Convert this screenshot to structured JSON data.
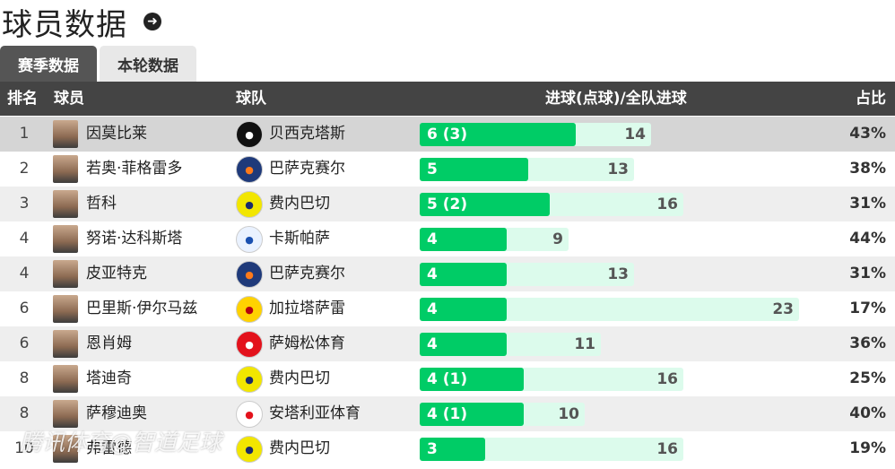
{
  "header": {
    "title": "球员数据",
    "arrow_icon": "arrow-right-circle-icon"
  },
  "tabs": [
    {
      "label": "赛季数据",
      "active": true
    },
    {
      "label": "本轮数据",
      "active": false
    }
  ],
  "columns": {
    "rank": "排名",
    "player": "球员",
    "team": "球队",
    "goals": "进球(点球)/全队进球",
    "share": "占比"
  },
  "rows": [
    {
      "rank": "1",
      "player": "因莫比莱",
      "team": "贝西克塔斯",
      "goals_label": "6 (3)",
      "goals": 6,
      "team_goals": 14,
      "team_goals_label": "14",
      "share": "43%",
      "logo_color": "#111111",
      "logo_fg": "#ffffff"
    },
    {
      "rank": "2",
      "player": "若奥·菲格雷多",
      "team": "巴萨克赛尔",
      "goals_label": "5",
      "goals": 5,
      "team_goals": 13,
      "team_goals_label": "13",
      "share": "38%",
      "logo_color": "#1f3a7a",
      "logo_fg": "#ff7a1a"
    },
    {
      "rank": "3",
      "player": "哲科",
      "team": "费内巴切",
      "goals_label": "5 (2)",
      "goals": 5,
      "team_goals": 16,
      "team_goals_label": "16",
      "share": "31%",
      "logo_color": "#f2e600",
      "logo_fg": "#1a2a6c"
    },
    {
      "rank": "4",
      "player": "努诺·达科斯塔",
      "team": "卡斯帕萨",
      "goals_label": "4",
      "goals": 4,
      "team_goals": 9,
      "team_goals_label": "9",
      "share": "44%",
      "logo_color": "#eaf2ff",
      "logo_fg": "#1a50b0"
    },
    {
      "rank": "4",
      "player": "皮亚特克",
      "team": "巴萨克赛尔",
      "goals_label": "4",
      "goals": 4,
      "team_goals": 13,
      "team_goals_label": "13",
      "share": "31%",
      "logo_color": "#1f3a7a",
      "logo_fg": "#ff7a1a"
    },
    {
      "rank": "6",
      "player": "巴里斯·伊尔马兹",
      "team": "加拉塔萨雷",
      "goals_label": "4",
      "goals": 4,
      "team_goals": 23,
      "team_goals_label": "23",
      "share": "17%",
      "logo_color": "#ffd200",
      "logo_fg": "#b4000f"
    },
    {
      "rank": "6",
      "player": "恩肖姆",
      "team": "萨姆松体育",
      "goals_label": "4",
      "goals": 4,
      "team_goals": 11,
      "team_goals_label": "11",
      "share": "36%",
      "logo_color": "#e3121c",
      "logo_fg": "#ffffff"
    },
    {
      "rank": "8",
      "player": "塔迪奇",
      "team": "费内巴切",
      "goals_label": "4 (1)",
      "goals": 4,
      "team_goals": 16,
      "team_goals_label": "16",
      "share": "25%",
      "logo_color": "#f2e600",
      "logo_fg": "#1a2a6c"
    },
    {
      "rank": "8",
      "player": "萨穆迪奥",
      "team": "安塔利亚体育",
      "goals_label": "4 (1)",
      "goals": 4,
      "team_goals": 10,
      "team_goals_label": "10",
      "share": "40%",
      "logo_color": "#ffffff",
      "logo_fg": "#e3121c"
    },
    {
      "rank": "10",
      "player": "弗雷德",
      "team": "费内巴切",
      "goals_label": "3",
      "goals": 3,
      "team_goals": 16,
      "team_goals_label": "16",
      "share": "19%",
      "logo_color": "#f2e600",
      "logo_fg": "#1a2a6c"
    }
  ],
  "watermark": "腾讯体育@智道足球"
}
